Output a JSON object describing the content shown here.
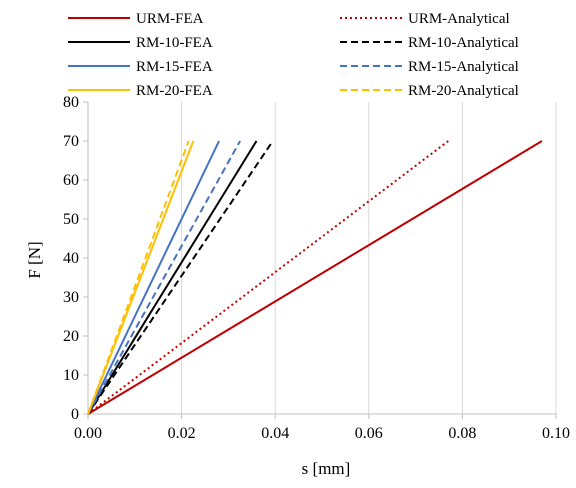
{
  "chart_data": {
    "type": "line",
    "xlabel": "s [mm]",
    "ylabel": "F [N]",
    "xlim": [
      0,
      0.1
    ],
    "ylim": [
      0,
      80
    ],
    "x_ticks": [
      0,
      0.02,
      0.04,
      0.06,
      0.08,
      0.1
    ],
    "x_tick_labels": [
      "0.00",
      "0.02",
      "0.04",
      "0.06",
      "0.08",
      "0.10"
    ],
    "y_ticks": [
      0,
      10,
      20,
      30,
      40,
      50,
      60,
      70,
      80
    ],
    "y_tick_labels": [
      "0",
      "10",
      "20",
      "30",
      "40",
      "50",
      "60",
      "70",
      "80"
    ],
    "grid": "vertical",
    "legend_position": "top",
    "series": [
      {
        "name": "URM-FEA",
        "color": "#c00000",
        "dash": "solid",
        "x": [
          0,
          0.097
        ],
        "y": [
          0,
          70
        ]
      },
      {
        "name": "URM-Analytical",
        "color": "#c00000",
        "dash": "dotted",
        "x": [
          0,
          0.077
        ],
        "y": [
          0,
          70
        ]
      },
      {
        "name": "RM-10-FEA",
        "color": "#000000",
        "dash": "solid",
        "x": [
          0,
          0.036
        ],
        "y": [
          0,
          70
        ]
      },
      {
        "name": "RM-10-Analytical",
        "color": "#000000",
        "dash": "dashed",
        "x": [
          0,
          0.0395
        ],
        "y": [
          0,
          70
        ]
      },
      {
        "name": "RM-15-FEA",
        "color": "#4472c4",
        "dash": "solid",
        "x": [
          0,
          0.028
        ],
        "y": [
          0,
          70
        ]
      },
      {
        "name": "RM-15-Analytical",
        "color": "#4472c4",
        "dash": "dashed",
        "x": [
          0,
          0.0325
        ],
        "y": [
          0,
          70
        ]
      },
      {
        "name": "RM-20-FEA",
        "color": "#ffc000",
        "dash": "solid",
        "x": [
          0,
          0.0225
        ],
        "y": [
          0,
          70
        ]
      },
      {
        "name": "RM-20-Analytical",
        "color": "#ffc000",
        "dash": "dashed",
        "x": [
          0,
          0.0215
        ],
        "y": [
          0,
          70
        ]
      }
    ]
  }
}
